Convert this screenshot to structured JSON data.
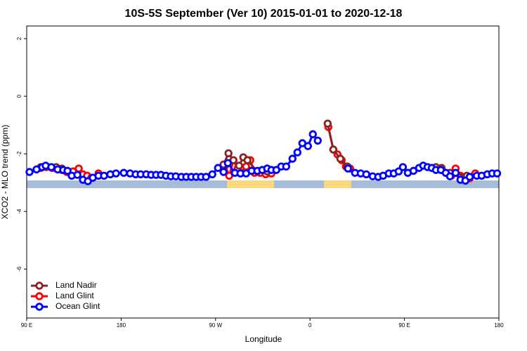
{
  "chart_data": {
    "type": "line",
    "title": "10S-5S September (Ver 10)   2015-01-01 to 2020-12-18",
    "x_label": "Longitude",
    "y_label": "XCO2 - MLO trend (ppm)",
    "xlim": [
      90,
      540
    ],
    "xticks": [
      {
        "value": 90,
        "label": "90 E"
      },
      {
        "value": 180,
        "label": "180"
      },
      {
        "value": 270,
        "label": "90 W"
      },
      {
        "value": 360,
        "label": "0"
      },
      {
        "value": 450,
        "label": "90 E"
      },
      {
        "value": 540,
        "label": "180"
      }
    ],
    "ylim": [
      -7.7,
      2.44
    ],
    "yticks": [
      2,
      0,
      -2,
      -4,
      -6
    ],
    "legend": "bottomleft",
    "series": [
      {
        "name": "Land Nadir",
        "color": "#8b2323",
        "x": [
          103.4,
          108.8,
          118.1,
          123.5,
          null,
          277.6,
          282.3,
          287.0,
          292.4,
          296.4,
          300.4,
          309.8,
          319.2,
          null,
          376.8,
          382.2,
          388.9,
          395.6,
          null,
          480.0,
          485.4,
          493.4,
          509.5
        ],
        "values": [
          -2.46,
          -2.44,
          -2.46,
          -2.51,
          null,
          -2.37,
          -1.98,
          -2.22,
          -2.41,
          -2.12,
          -2.22,
          -2.61,
          -2.61,
          null,
          -0.95,
          -1.85,
          -2.17,
          -2.44,
          null,
          -2.46,
          -2.49,
          -2.66,
          -2.76
        ]
      },
      {
        "name": "Land Glint",
        "color": "#ff0000",
        "x": [
          103.4,
          108.8,
          114.1,
          118.1,
          123.5,
          128.2,
          134.2,
          139.6,
          143.6,
          147.6,
          151.6,
          158.4,
          null,
          279.0,
          283.0,
          287.0,
          291.0,
          295.1,
          299.1,
          303.1,
          307.1,
          312.5,
          317.8,
          323.2,
          null,
          377.5,
          382.2,
          386.2,
          390.2,
          394.2,
          398.2,
          null,
          480.0,
          485.4,
          489.4,
          494.7,
          498.8,
          503.4,
          508.1,
          512.2,
          517.5
        ],
        "values": [
          -2.49,
          -2.46,
          -2.49,
          -2.51,
          -2.56,
          -2.63,
          -2.61,
          -2.51,
          -2.71,
          -2.76,
          -2.83,
          -2.68,
          null,
          -2.41,
          -2.76,
          -2.22,
          -2.51,
          -2.66,
          -2.44,
          -2.22,
          -2.66,
          -2.66,
          -2.71,
          -2.68,
          null,
          -1.07,
          -1.85,
          -2.02,
          -2.22,
          -2.44,
          -2.51,
          null,
          -2.51,
          -2.56,
          -2.66,
          -2.76,
          -2.51,
          -2.76,
          -2.85,
          -2.85,
          -2.68
        ]
      },
      {
        "name": "Ocean Glint",
        "color": "#0000ff",
        "x": [
          92.7,
          99.4,
          104.8,
          108.1,
          113.5,
          119.5,
          124.8,
          128.9,
          132.9,
          138.3,
          143.6,
          148.3,
          153.0,
          158.4,
          163.7,
          169.7,
          175.1,
          182.5,
          188.5,
          193.9,
          198.6,
          203.9,
          208.6,
          213.3,
          218.0,
          222.7,
          227.4,
          232.1,
          237.4,
          242.1,
          246.8,
          251.5,
          256.2,
          260.9,
          266.9,
          272.3,
          277.6,
          281.7,
          288.4,
          293.7,
          299.1,
          304.4,
          309.8,
          314.5,
          319.2,
          323.2,
          327.9,
          332.6,
          337.3,
          343.3,
          348.0,
          352.7,
          358.0,
          362.7,
          367.4,
          null,
          396.2,
          402.9,
          408.3,
          413.6,
          419.7,
          425.0,
          429.7,
          435.1,
          439.8,
          444.5,
          448.5,
          453.2,
          458.6,
          463.9,
          467.9,
          472.0,
          476.0,
          480.0,
          484.7,
          489.4,
          493.4,
          498.8,
          503.4,
          508.1,
          512.2,
          518.9,
          523.6,
          528.9,
          533.6,
          538.3
        ],
        "values": [
          -2.63,
          -2.54,
          -2.46,
          -2.41,
          -2.46,
          -2.54,
          -2.56,
          -2.59,
          -2.76,
          -2.73,
          -2.9,
          -2.95,
          -2.83,
          -2.76,
          -2.76,
          -2.71,
          -2.68,
          -2.66,
          -2.68,
          -2.71,
          -2.71,
          -2.71,
          -2.73,
          -2.73,
          -2.73,
          -2.76,
          -2.78,
          -2.78,
          -2.8,
          -2.8,
          -2.8,
          -2.8,
          -2.8,
          -2.8,
          -2.71,
          -2.49,
          -2.63,
          -2.32,
          -2.66,
          -2.68,
          -2.68,
          -2.59,
          -2.59,
          -2.56,
          -2.51,
          -2.56,
          -2.56,
          -2.44,
          -2.44,
          -2.17,
          -1.95,
          -1.63,
          -1.73,
          -1.32,
          -1.54,
          null,
          -2.51,
          -2.66,
          -2.68,
          -2.71,
          -2.78,
          -2.8,
          -2.76,
          -2.68,
          -2.68,
          -2.61,
          -2.46,
          -2.66,
          -2.59,
          -2.49,
          -2.41,
          -2.46,
          -2.49,
          -2.56,
          -2.56,
          -2.66,
          -2.78,
          -2.66,
          -2.9,
          -2.93,
          -2.8,
          -2.76,
          -2.76,
          -2.71,
          -2.68,
          -2.68
        ]
      }
    ]
  }
}
